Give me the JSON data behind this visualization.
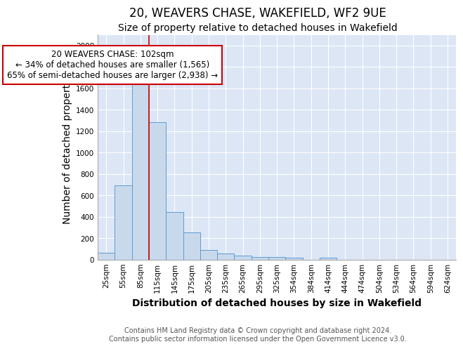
{
  "title": "20, WEAVERS CHASE, WAKEFIELD, WF2 9UE",
  "subtitle": "Size of property relative to detached houses in Wakefield",
  "xlabel": "Distribution of detached houses by size in Wakefield",
  "ylabel": "Number of detached properties",
  "footer_line1": "Contains HM Land Registry data © Crown copyright and database right 2024.",
  "footer_line2": "Contains public sector information licensed under the Open Government Licence v3.0.",
  "bar_labels": [
    "25sqm",
    "55sqm",
    "85sqm",
    "115sqm",
    "145sqm",
    "175sqm",
    "205sqm",
    "235sqm",
    "265sqm",
    "295sqm",
    "325sqm",
    "354sqm",
    "384sqm",
    "414sqm",
    "444sqm",
    "474sqm",
    "504sqm",
    "534sqm",
    "564sqm",
    "594sqm",
    "624sqm"
  ],
  "bar_values": [
    65,
    690,
    1640,
    1280,
    440,
    255,
    90,
    55,
    35,
    25,
    20,
    15,
    0,
    15,
    0,
    0,
    0,
    0,
    0,
    0,
    0
  ],
  "bar_color": "#c9d9ec",
  "bar_edge_color": "#5b9bd5",
  "red_line_x": 2.5,
  "annotation_text": "20 WEAVERS CHASE: 102sqm\n← 34% of detached houses are smaller (1,565)\n65% of semi-detached houses are larger (2,938) →",
  "annotation_box_color": "#ffffff",
  "annotation_box_edge": "#cc0000",
  "red_line_color": "#cc0000",
  "ylim": [
    0,
    2100
  ],
  "yticks": [
    0,
    200,
    400,
    600,
    800,
    1000,
    1200,
    1400,
    1600,
    1800,
    2000
  ],
  "fig_background_color": "#ffffff",
  "plot_background": "#dce6f5",
  "grid_color": "#ffffff",
  "title_fontsize": 12,
  "subtitle_fontsize": 10,
  "axis_label_fontsize": 10,
  "tick_fontsize": 7.5,
  "footer_fontsize": 7,
  "annotation_fontsize": 8.5
}
